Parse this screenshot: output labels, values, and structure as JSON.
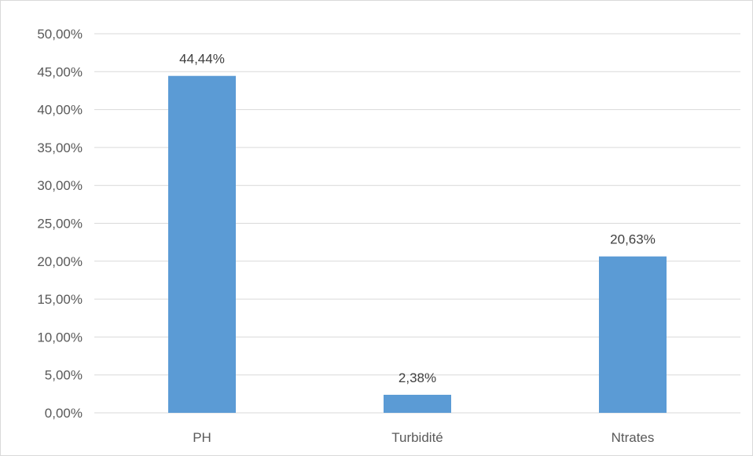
{
  "chart_data": {
    "type": "bar",
    "categories": [
      "PH",
      "Turbidité",
      "Ntrates"
    ],
    "values": [
      44.44,
      2.38,
      20.63
    ],
    "data_labels": [
      "44,44%",
      "2,38%",
      "20,63%"
    ],
    "y_ticks": [
      "0,00%",
      "5,00%",
      "10,00%",
      "15,00%",
      "20,00%",
      "25,00%",
      "30,00%",
      "35,00%",
      "40,00%",
      "45,00%",
      "50,00%"
    ],
    "ylim": [
      0,
      50
    ],
    "grid": true,
    "bar_color": "#5b9bd5",
    "gridline_color": "#d9d9d9"
  }
}
